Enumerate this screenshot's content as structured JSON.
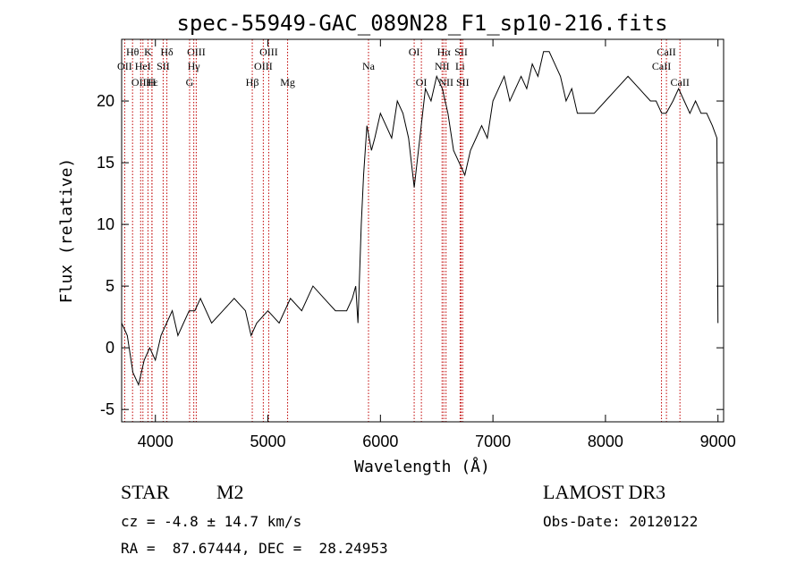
{
  "chart_data": {
    "type": "line",
    "title": "spec-55949-GAC_089N28_F1_sp10-216.fits",
    "xlabel": "Wavelength (Å)",
    "ylabel": "Flux (relative)",
    "xlim": [
      3700,
      9050
    ],
    "ylim": [
      -6,
      25
    ],
    "xticks": [
      4000,
      5000,
      6000,
      7000,
      8000,
      9000
    ],
    "yticks": [
      -5,
      0,
      5,
      10,
      15,
      20
    ],
    "grid": false,
    "series": [
      {
        "x": [
          3700,
          3750,
          3800,
          3850,
          3900,
          3950,
          4000,
          4050,
          4100,
          4150,
          4200,
          4250,
          4300,
          4350,
          4400,
          4500,
          4600,
          4700,
          4800,
          4850,
          4900,
          5000,
          5100,
          5200,
          5300,
          5400,
          5500,
          5600,
          5700,
          5750,
          5780,
          5800,
          5830,
          5850,
          5880,
          5900,
          5920,
          5950,
          6000,
          6050,
          6100,
          6150,
          6200,
          6250,
          6300,
          6350,
          6400,
          6450,
          6500,
          6550,
          6600,
          6650,
          6700,
          6750,
          6800,
          6850,
          6900,
          6950,
          7000,
          7050,
          7100,
          7150,
          7200,
          7250,
          7300,
          7350,
          7400,
          7450,
          7500,
          7550,
          7600,
          7650,
          7700,
          7750,
          7800,
          7900,
          8000,
          8100,
          8200,
          8300,
          8400,
          8450,
          8500,
          8540,
          8600,
          8650,
          8700,
          8750,
          8800,
          8850,
          8900,
          8950,
          8990,
          9000
        ],
        "y": [
          2,
          1,
          -2,
          -3,
          -1,
          0,
          -1,
          1,
          2,
          3,
          1,
          2,
          3,
          3,
          4,
          2,
          3,
          4,
          3,
          1,
          2,
          3,
          2,
          4,
          3,
          5,
          4,
          3,
          3,
          4,
          5,
          2,
          10,
          14,
          18,
          17,
          16,
          17,
          19,
          18,
          17,
          20,
          19,
          17,
          13,
          17,
          21,
          20,
          22,
          21,
          19,
          16,
          15,
          14,
          16,
          17,
          18,
          17,
          20,
          21,
          22,
          20,
          21,
          22,
          21,
          23,
          22,
          24,
          24,
          23,
          22,
          20,
          21,
          19,
          19,
          19,
          20,
          21,
          22,
          21,
          20,
          20,
          19,
          19,
          20,
          21,
          20,
          19,
          20,
          19,
          19,
          18,
          17,
          2
        ]
      }
    ],
    "line_markers": [
      {
        "label": "Hθ",
        "wavelength": 3797,
        "row": 1
      },
      {
        "label": "OII",
        "wavelength": 3727,
        "row": 2
      },
      {
        "label": "OIII",
        "wavelength": 3869,
        "row": 3
      },
      {
        "label": "K",
        "wavelength": 3934,
        "row": 1
      },
      {
        "label": "HeI",
        "wavelength": 3889,
        "row": 2
      },
      {
        "label": "Hε",
        "wavelength": 3970,
        "row": 3
      },
      {
        "label": "SII",
        "wavelength": 4069,
        "row": 2
      },
      {
        "label": "H",
        "wavelength": 3969,
        "row": 3
      },
      {
        "label": "Hδ",
        "wavelength": 4102,
        "row": 1
      },
      {
        "label": "OIII",
        "wavelength": 4363,
        "row": 1
      },
      {
        "label": "Hγ",
        "wavelength": 4341,
        "row": 2
      },
      {
        "label": "G",
        "wavelength": 4304,
        "row": 3
      },
      {
        "label": "Hβ",
        "wavelength": 4861,
        "row": 3
      },
      {
        "label": "OIII",
        "wavelength": 5007,
        "row": 1
      },
      {
        "label": "OIII",
        "wavelength": 4959,
        "row": 2
      },
      {
        "label": "Mg",
        "wavelength": 5175,
        "row": 3
      },
      {
        "label": "Na",
        "wavelength": 5894,
        "row": 2
      },
      {
        "label": "OI",
        "wavelength": 6300,
        "row": 1
      },
      {
        "label": "OI",
        "wavelength": 6364,
        "row": 3
      },
      {
        "label": "Hα",
        "wavelength": 6563,
        "row": 1
      },
      {
        "label": "NII",
        "wavelength": 6548,
        "row": 2
      },
      {
        "label": "NII",
        "wavelength": 6583,
        "row": 3
      },
      {
        "label": "SII",
        "wavelength": 6717,
        "row": 1
      },
      {
        "label": "Li",
        "wavelength": 6708,
        "row": 2
      },
      {
        "label": "SII",
        "wavelength": 6731,
        "row": 3
      },
      {
        "label": "CaII",
        "wavelength": 8542,
        "row": 1
      },
      {
        "label": "CaII",
        "wavelength": 8498,
        "row": 2
      },
      {
        "label": "CaII",
        "wavelength": 8662,
        "row": 3
      }
    ]
  },
  "info": {
    "object_class": "STAR",
    "subclass": "M2",
    "survey": "LAMOST DR3",
    "cz": "cz = -4.8 ± 14.7 km/s",
    "obs_date": "Obs-Date: 20120122",
    "coords": "RA =  87.67444, DEC =  28.24953"
  },
  "colors": {
    "spectrum": "#000000",
    "marker_line": "#c00000",
    "axes": "#000000"
  }
}
